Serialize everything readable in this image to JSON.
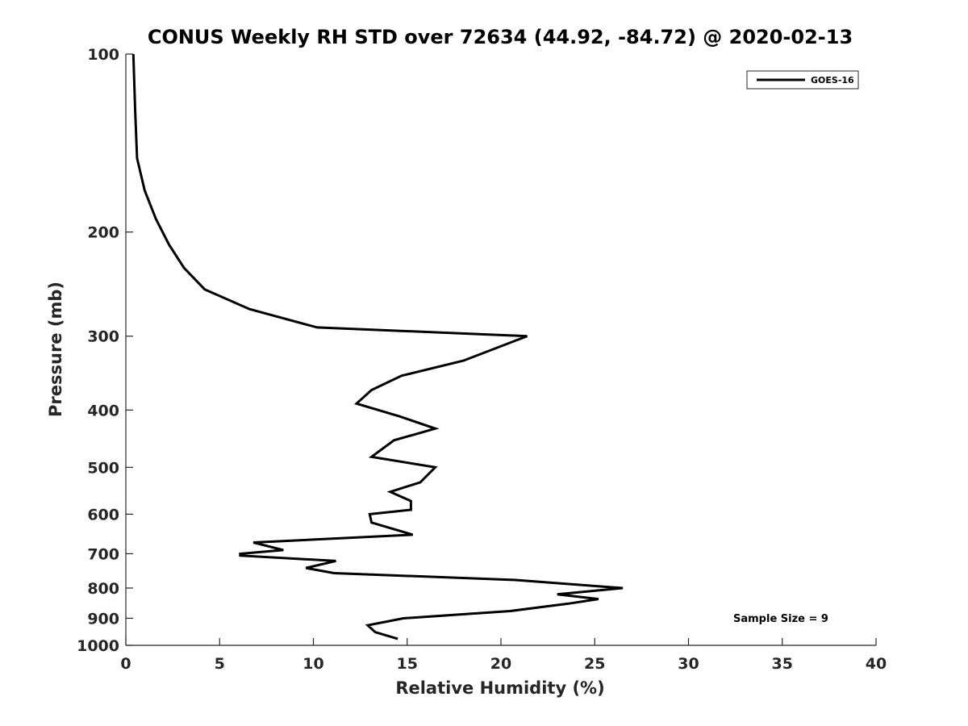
{
  "chart_data": {
    "type": "line",
    "title": "CONUS Weekly RH STD over 72634 (44.92, -84.72) @ 2020-02-13",
    "xlabel": "Relative Humidity (%)",
    "ylabel": "Pressure (mb)",
    "xlim": [
      0,
      40
    ],
    "ylim": [
      1000,
      100
    ],
    "y_scale": "log",
    "y_reversed": true,
    "x_ticks": [
      0,
      5,
      10,
      15,
      20,
      25,
      30,
      35,
      40
    ],
    "y_ticks": [
      100,
      200,
      300,
      400,
      500,
      600,
      700,
      800,
      900,
      1000
    ],
    "grid": false,
    "legend": {
      "position": "top-right",
      "entries": [
        "GOES-16"
      ]
    },
    "annotation": "Sample Size = 9",
    "series": [
      {
        "name": "GOES-16",
        "color": "#000000",
        "x": [
          0.4,
          0.5,
          0.6,
          1.0,
          1.6,
          2.3,
          3.1,
          4.2,
          6.6,
          10.2,
          21.4,
          18.0,
          14.7,
          13.1,
          12.3,
          14.6,
          16.5,
          14.3,
          13.1,
          16.5,
          15.7,
          14.1,
          15.2,
          15.2,
          13.0,
          13.1,
          15.3,
          6.8,
          8.4,
          6.1,
          6.1,
          11.2,
          9.6,
          11.1,
          20.7,
          26.5,
          23.0,
          25.2,
          23.6,
          20.5,
          14.8,
          12.9,
          13.3,
          14.5
        ],
        "y": [
          100,
          125,
          150,
          170,
          190,
          210,
          230,
          250,
          270,
          290,
          300,
          330,
          350,
          370,
          390,
          410,
          430,
          450,
          480,
          500,
          530,
          550,
          570,
          590,
          600,
          620,
          650,
          670,
          690,
          700,
          705,
          720,
          740,
          755,
          775,
          800,
          820,
          835,
          850,
          875,
          900,
          925,
          950,
          975
        ]
      }
    ]
  }
}
